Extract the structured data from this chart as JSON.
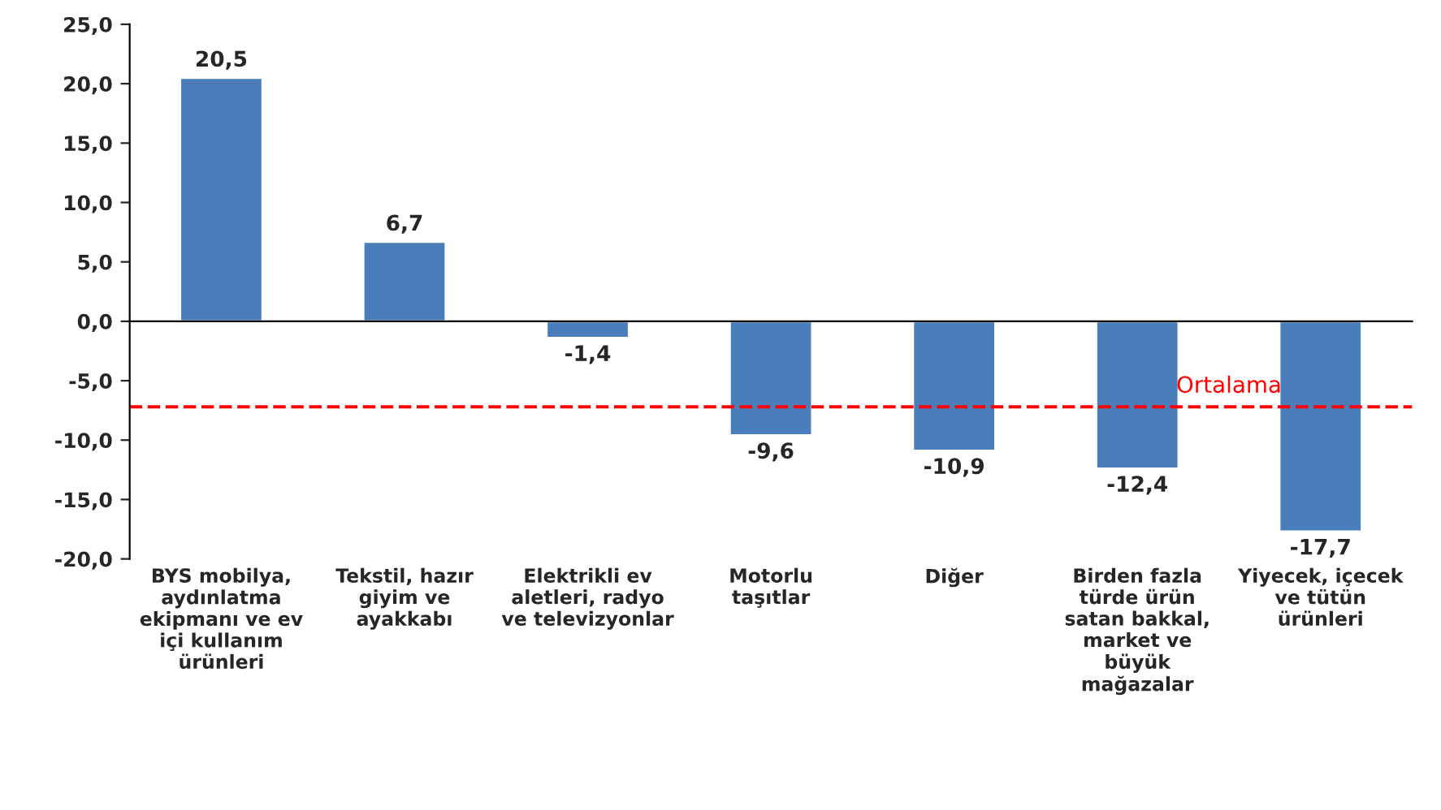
{
  "chart_data": {
    "type": "bar",
    "categories": [
      "BYS mobilya,\naydınlatma\nekipmanı ve ev\niçi kullanım\nürünleri",
      "Tekstil, hazır\ngiyim ve\nayakkabı",
      "Elektrikli ev\naletleri, radyo\nve televizyonlar",
      "Motorlu\ntaşıtlar",
      "Diğer",
      "Birden fazla\ntürde ürün\nsatan bakkal,\nmarket ve\nbüyük\nmağazalar",
      "Yiyecek, içecek\nve tütün\nürünleri"
    ],
    "values": [
      20.5,
      6.7,
      -1.4,
      -9.6,
      -10.9,
      -12.4,
      -17.7
    ],
    "value_labels": [
      "20,5",
      "6,7",
      "-1,4",
      "-9,6",
      "-10,9",
      "-12,4",
      "-17,7"
    ],
    "color": "#4a7ebb",
    "ylim": [
      -20,
      25
    ],
    "yticks": [
      {
        "value": -20,
        "label": "-20,0"
      },
      {
        "value": -15,
        "label": "-15,0"
      },
      {
        "value": -10,
        "label": "-10,0"
      },
      {
        "value": -5,
        "label": "-5,0"
      },
      {
        "value": 0,
        "label": "0,0"
      },
      {
        "value": 5,
        "label": "5,0"
      },
      {
        "value": 10,
        "label": "10,0"
      },
      {
        "value": 15,
        "label": "15,0"
      },
      {
        "value": 20,
        "label": "20,0"
      },
      {
        "value": 25,
        "label": "25,0"
      }
    ],
    "ref_lines": [
      {
        "axis": "y",
        "value": -7.2,
        "label": "Ortalama",
        "color": "#ff0000",
        "line_style": "dashed"
      }
    ],
    "legend": false
  }
}
